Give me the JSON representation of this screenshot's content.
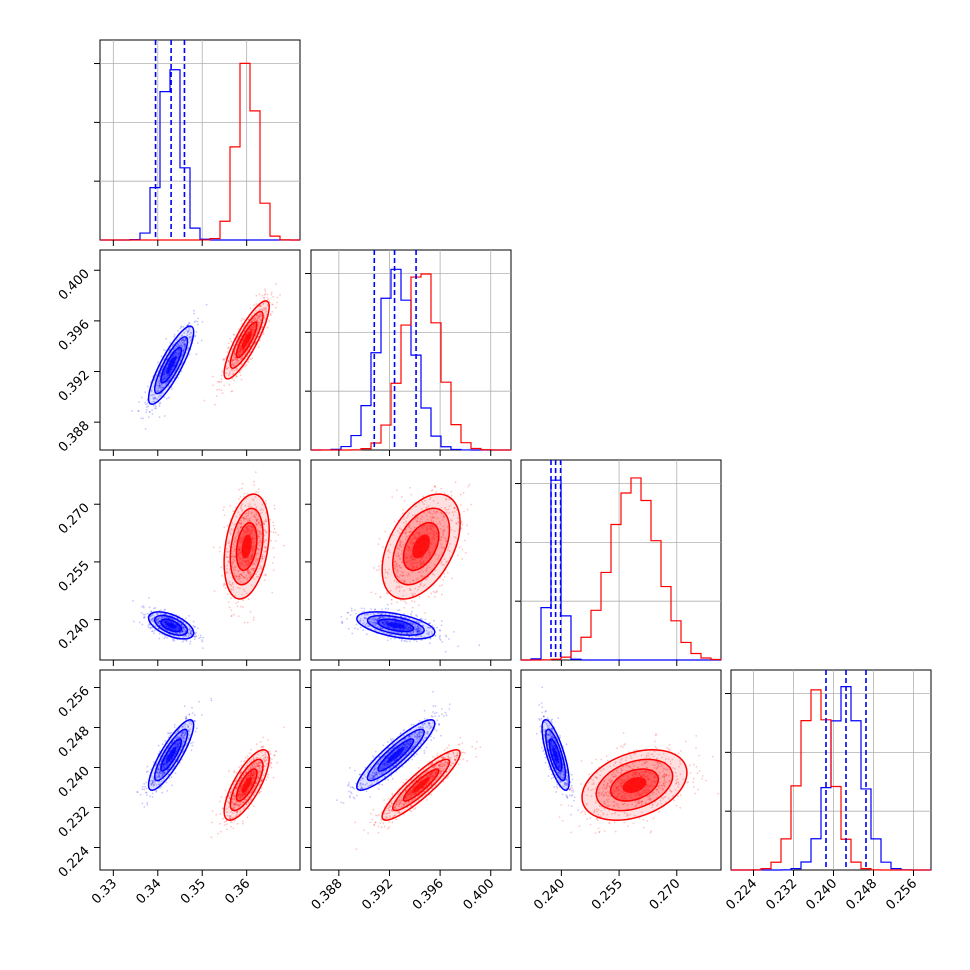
{
  "chart_data": {
    "type": "corner",
    "grid": true,
    "colors": {
      "series_a": "#0000ff",
      "series_b": "#ff0000"
    },
    "parameters": [
      {
        "range": [
          0.327,
          0.372
        ],
        "ticks": [
          "0.33",
          "0.34",
          "0.35",
          "0.36"
        ],
        "tick_values": [
          0.33,
          0.34,
          0.35,
          0.36
        ]
      },
      {
        "range": [
          0.3858,
          0.4016
        ],
        "ticks": [
          "0.388",
          "0.392",
          "0.396",
          "0.400"
        ],
        "tick_values": [
          0.388,
          0.392,
          0.396,
          0.4
        ]
      },
      {
        "range": [
          0.2295,
          0.2815
        ],
        "ticks": [
          "0.240",
          "0.255",
          "0.270"
        ],
        "tick_values": [
          0.24,
          0.255,
          0.27
        ]
      },
      {
        "range": [
          0.2195,
          0.2595
        ],
        "ticks": [
          "0.224",
          "0.232",
          "0.240",
          "0.248",
          "0.256"
        ],
        "tick_values": [
          0.224,
          0.232,
          0.24,
          0.248,
          0.256
        ]
      }
    ],
    "series": [
      {
        "color": "#0000ff",
        "mean": [
          0.343,
          0.3925,
          0.2385,
          0.2425
        ],
        "std": [
          0.0023,
          0.0014,
          0.0016,
          0.0032
        ],
        "corr": [
          [
            1,
            0.85,
            -0.55,
            0.85
          ],
          [
            0.85,
            1,
            -0.5,
            0.9
          ],
          [
            -0.55,
            -0.5,
            1,
            -0.75
          ],
          [
            0.85,
            0.9,
            -0.75,
            1
          ]
        ],
        "quantiles": [
          [
            0.3395,
            0.343,
            0.346
          ],
          [
            0.3908,
            0.3924,
            0.3941
          ],
          [
            0.2373,
            0.2385,
            0.2398
          ],
          [
            0.2385,
            0.2425,
            0.2465
          ]
        ]
      },
      {
        "color": "#ff0000",
        "mean": [
          0.36,
          0.3945,
          0.259,
          0.2365
        ],
        "std": [
          0.0023,
          0.0014,
          0.0062,
          0.0032
        ],
        "corr": [
          [
            1,
            0.85,
            0.3,
            0.75
          ],
          [
            0.85,
            1,
            0.45,
            0.9
          ],
          [
            0.3,
            0.45,
            1,
            0.35
          ],
          [
            0.75,
            0.9,
            0.35,
            1
          ]
        ],
        "quantiles": []
      }
    ]
  }
}
